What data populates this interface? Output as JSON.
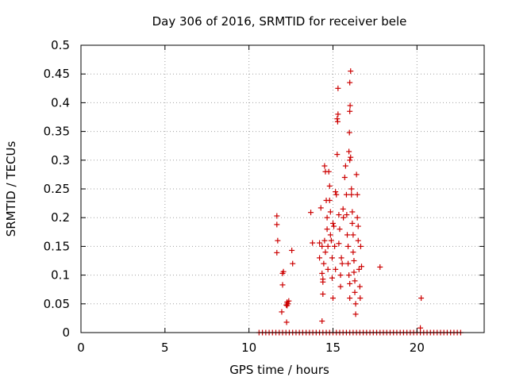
{
  "chart_data": {
    "type": "scatter",
    "title": "Day 306 of 2016, SRMTID for receiver bele",
    "xlabel": "GPS time / hours",
    "ylabel": "SRMTID / TECUs",
    "xlim": [
      0,
      24.0
    ],
    "ylim": [
      0,
      0.5
    ],
    "x_ticks": [
      0,
      5,
      10,
      15,
      20
    ],
    "y_ticks": [
      0,
      0.05,
      0.1,
      0.15,
      0.2,
      0.25,
      0.3,
      0.35,
      0.4,
      0.45,
      0.5
    ],
    "x_tick_labels": [
      "0",
      "5",
      "10",
      "15",
      "20"
    ],
    "y_tick_labels": [
      "0",
      "0.05",
      "0.1",
      "0.15",
      "0.2",
      "0.25",
      "0.3",
      "0.35",
      "0.4",
      "0.45",
      "0.5"
    ],
    "grid": true,
    "marker": "+",
    "color": "#cc0000",
    "series": [
      {
        "name": "SRMTID",
        "points": [
          [
            11.66,
            0.203
          ],
          [
            11.66,
            0.188
          ],
          [
            11.71,
            0.16
          ],
          [
            11.66,
            0.139
          ],
          [
            12.0,
            0.103
          ],
          [
            12.05,
            0.106
          ],
          [
            12.0,
            0.083
          ],
          [
            11.95,
            0.036
          ],
          [
            12.27,
            0.053
          ],
          [
            12.27,
            0.047
          ],
          [
            12.32,
            0.05
          ],
          [
            12.37,
            0.055
          ],
          [
            12.22,
            0.048
          ],
          [
            12.24,
            0.018
          ],
          [
            12.55,
            0.143
          ],
          [
            12.6,
            0.12
          ],
          [
            13.68,
            0.209
          ],
          [
            13.78,
            0.156
          ],
          [
            14.2,
            0.156
          ],
          [
            14.2,
            0.13
          ],
          [
            14.28,
            0.217
          ],
          [
            14.35,
            0.15
          ],
          [
            14.35,
            0.103
          ],
          [
            14.4,
            0.093
          ],
          [
            14.4,
            0.067
          ],
          [
            14.35,
            0.02
          ],
          [
            14.45,
            0.12
          ],
          [
            14.4,
            0.088
          ],
          [
            14.5,
            0.16
          ],
          [
            14.55,
            0.14
          ],
          [
            14.5,
            0.29
          ],
          [
            14.55,
            0.28
          ],
          [
            14.6,
            0.23
          ],
          [
            14.65,
            0.2
          ],
          [
            14.65,
            0.18
          ],
          [
            14.7,
            0.15
          ],
          [
            14.7,
            0.11
          ],
          [
            14.75,
            0.28
          ],
          [
            14.8,
            0.255
          ],
          [
            14.8,
            0.23
          ],
          [
            14.85,
            0.21
          ],
          [
            14.85,
            0.17
          ],
          [
            14.9,
            0.16
          ],
          [
            14.95,
            0.13
          ],
          [
            14.95,
            0.095
          ],
          [
            15.0,
            0.06
          ],
          [
            15.0,
            0.19
          ],
          [
            15.05,
            0.185
          ],
          [
            15.1,
            0.15
          ],
          [
            15.15,
            0.11
          ],
          [
            15.15,
            0.245
          ],
          [
            15.2,
            0.24
          ],
          [
            15.25,
            0.31
          ],
          [
            15.25,
            0.372
          ],
          [
            15.28,
            0.367
          ],
          [
            15.3,
            0.38
          ],
          [
            15.3,
            0.425
          ],
          [
            15.35,
            0.205
          ],
          [
            15.35,
            0.155
          ],
          [
            15.4,
            0.18
          ],
          [
            15.45,
            0.1
          ],
          [
            15.45,
            0.08
          ],
          [
            15.5,
            0.13
          ],
          [
            15.55,
            0.12
          ],
          [
            15.6,
            0.215
          ],
          [
            15.62,
            0.2
          ],
          [
            15.7,
            0.27
          ],
          [
            15.75,
            0.29
          ],
          [
            15.8,
            0.24
          ],
          [
            15.82,
            0.205
          ],
          [
            15.85,
            0.17
          ],
          [
            15.9,
            0.15
          ],
          [
            15.9,
            0.12
          ],
          [
            15.95,
            0.1
          ],
          [
            16.0,
            0.085
          ],
          [
            16.0,
            0.06
          ],
          [
            15.95,
            0.315
          ],
          [
            16.0,
            0.3
          ],
          [
            16.02,
            0.395
          ],
          [
            16.0,
            0.385
          ],
          [
            15.98,
            0.348
          ],
          [
            16.05,
            0.455
          ],
          [
            16.0,
            0.435
          ],
          [
            16.05,
            0.305
          ],
          [
            16.1,
            0.25
          ],
          [
            16.1,
            0.24
          ],
          [
            16.15,
            0.21
          ],
          [
            16.15,
            0.19
          ],
          [
            16.2,
            0.17
          ],
          [
            16.2,
            0.14
          ],
          [
            16.25,
            0.125
          ],
          [
            16.25,
            0.105
          ],
          [
            16.3,
            0.09
          ],
          [
            16.3,
            0.07
          ],
          [
            16.35,
            0.05
          ],
          [
            16.35,
            0.032
          ],
          [
            16.4,
            0.275
          ],
          [
            16.45,
            0.24
          ],
          [
            16.45,
            0.2
          ],
          [
            16.5,
            0.185
          ],
          [
            16.5,
            0.16
          ],
          [
            16.55,
            0.11
          ],
          [
            16.6,
            0.08
          ],
          [
            16.62,
            0.06
          ],
          [
            16.65,
            0.15
          ],
          [
            16.7,
            0.115
          ],
          [
            17.8,
            0.114
          ],
          [
            20.25,
            0.06
          ],
          [
            20.2,
            0.008
          ],
          [
            10.6,
            0.0
          ],
          [
            10.8,
            0.0
          ],
          [
            11.0,
            0.0
          ],
          [
            11.2,
            0.0
          ],
          [
            11.4,
            0.0
          ],
          [
            11.6,
            0.0
          ],
          [
            11.8,
            0.0
          ],
          [
            12.0,
            0.0
          ],
          [
            12.2,
            0.0
          ],
          [
            12.4,
            0.0
          ],
          [
            12.6,
            0.0
          ],
          [
            12.8,
            0.0
          ],
          [
            13.0,
            0.0
          ],
          [
            13.2,
            0.0
          ],
          [
            13.4,
            0.0
          ],
          [
            13.6,
            0.0
          ],
          [
            13.8,
            0.0
          ],
          [
            14.0,
            0.0
          ],
          [
            14.2,
            0.0
          ],
          [
            14.4,
            0.0
          ],
          [
            14.6,
            0.0
          ],
          [
            14.8,
            0.0
          ],
          [
            15.0,
            0.0
          ],
          [
            15.2,
            0.0
          ],
          [
            15.4,
            0.0
          ],
          [
            15.6,
            0.0
          ],
          [
            15.8,
            0.0
          ],
          [
            16.0,
            0.0
          ],
          [
            16.2,
            0.0
          ],
          [
            16.4,
            0.0
          ],
          [
            16.6,
            0.0
          ],
          [
            16.8,
            0.0
          ],
          [
            17.0,
            0.0
          ],
          [
            17.2,
            0.0
          ],
          [
            17.4,
            0.0
          ],
          [
            17.6,
            0.0
          ],
          [
            17.8,
            0.0
          ],
          [
            18.0,
            0.0
          ],
          [
            18.2,
            0.0
          ],
          [
            18.4,
            0.0
          ],
          [
            18.6,
            0.0
          ],
          [
            18.8,
            0.0
          ],
          [
            19.0,
            0.0
          ],
          [
            19.2,
            0.0
          ],
          [
            19.4,
            0.0
          ],
          [
            19.6,
            0.0
          ],
          [
            19.8,
            0.0
          ],
          [
            20.0,
            0.0
          ],
          [
            20.2,
            0.0
          ],
          [
            20.4,
            0.0
          ],
          [
            20.6,
            0.0
          ],
          [
            20.8,
            0.0
          ],
          [
            21.0,
            0.0
          ],
          [
            21.2,
            0.0
          ],
          [
            21.4,
            0.0
          ],
          [
            21.6,
            0.0
          ],
          [
            21.8,
            0.0
          ],
          [
            22.0,
            0.0
          ],
          [
            22.2,
            0.0
          ],
          [
            22.4,
            0.0
          ],
          [
            22.6,
            0.0
          ]
        ]
      }
    ]
  }
}
